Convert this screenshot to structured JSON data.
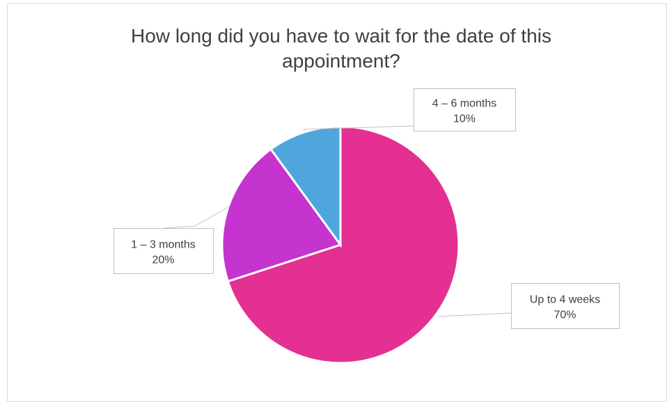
{
  "chart_data": {
    "type": "pie",
    "title": "How long did you have to wait for the date of this appointment?",
    "categories": [
      "Up to 4 weeks",
      "1 – 3 months",
      "4 – 6 months"
    ],
    "values": [
      70,
      20,
      10
    ],
    "value_labels": [
      "70%",
      "20%",
      "10%"
    ],
    "colors": [
      "#e33092",
      "#c634cf",
      "#4fa6dd"
    ]
  }
}
